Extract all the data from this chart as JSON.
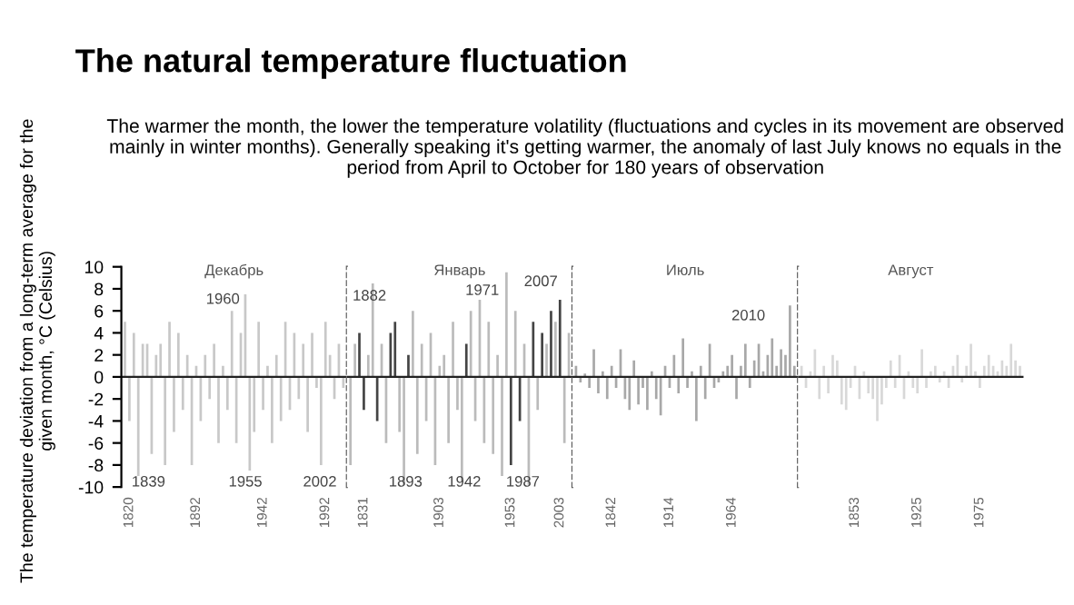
{
  "chart_data": [
    {
      "type": "other",
      "title": "The natural temperature fluctuation",
      "subtitle": "The warmer the month, the lower the temperature volatility (fluctuations and cycles in its movement are observed mainly in winter months). Generally speaking it's getting warmer, the anomaly of last July knows no equals in the period from April to October for 180 years of observation"
    },
    {
      "type": "bar",
      "title": "Декабрь",
      "ylabel": "The temperature deviation from a long-term average for the given month, °C (Celsius)",
      "color": "#c8c8c8",
      "ylim": [
        -10,
        10
      ],
      "yticks": [
        -10,
        -8,
        -6,
        -4,
        -2,
        0,
        2,
        4,
        6,
        8,
        10
      ],
      "categories": [
        null,
        "1820",
        null,
        null,
        null,
        null,
        null,
        null,
        null,
        null,
        null,
        null,
        null,
        null,
        null,
        null,
        "1892",
        null,
        null,
        null,
        null,
        null,
        null,
        null,
        null,
        null,
        null,
        null,
        null,
        null,
        null,
        "1942",
        null,
        null,
        null,
        null,
        null,
        null,
        null,
        null,
        null,
        null,
        null,
        null,
        null,
        "1992",
        null,
        null,
        null,
        null
      ],
      "values": [
        5,
        -4,
        4,
        -9,
        3,
        3,
        -7,
        2,
        3,
        -8,
        5,
        -5,
        4,
        -3,
        2,
        -8,
        1,
        -4,
        2,
        -2,
        3,
        -6,
        1,
        -3,
        6,
        -6,
        4,
        7.5,
        -8.5,
        -5,
        5,
        -3,
        1,
        -6,
        2,
        -4,
        5,
        -3,
        4,
        -2,
        3,
        -5,
        4,
        -1,
        -8,
        5,
        2,
        -2,
        3,
        -1
      ],
      "annotations": [
        "1960",
        "1839",
        "1955",
        "2002"
      ]
    },
    {
      "type": "bar",
      "title": "Январь",
      "tick_labels": "x",
      "ylim": [
        -10,
        10
      ],
      "categories": [
        null,
        null,
        null,
        "1831",
        null,
        null,
        null,
        null,
        null,
        null,
        null,
        null,
        null,
        null,
        null,
        null,
        null,
        null,
        null,
        null,
        "1903",
        null,
        null,
        null,
        null,
        null,
        null,
        null,
        null,
        null,
        null,
        null,
        null,
        null,
        null,
        null,
        "1953",
        null,
        null,
        null,
        null,
        null,
        null,
        null,
        null,
        null,
        null,
        "2003",
        null,
        null
      ],
      "values": [
        -8,
        3,
        4,
        -3,
        2,
        8.5,
        -4,
        3,
        -6,
        4,
        5,
        -5,
        -9.8,
        2,
        6,
        -7,
        3,
        -4,
        4,
        -8,
        1,
        2,
        -6,
        5,
        -3,
        -9.5,
        3,
        6,
        -4,
        7,
        -6,
        5,
        -7,
        2,
        -9,
        9.5,
        -8,
        6,
        -4,
        3,
        -9.8,
        5,
        -3,
        4,
        3,
        6,
        5,
        7,
        -6,
        4
      ],
      "colors": [
        "#bbbbbb",
        "#bbbbbb",
        "#444444",
        "#444444",
        "#bbbbbb",
        "#bbbbbb",
        "#444444",
        "#bbbbbb",
        "#bbbbbb",
        "#444444",
        "#444444",
        "#bbbbbb",
        "#bbbbbb",
        "#444444",
        "#bbbbbb",
        "#bbbbbb",
        "#bbbbbb",
        "#bbbbbb",
        "#bbbbbb",
        "#bbbbbb",
        "#bbbbbb",
        "#bbbbbb",
        "#bbbbbb",
        "#bbbbbb",
        "#bbbbbb",
        "#bbbbbb",
        "#444444",
        "#bbbbbb",
        "#bbbbbb",
        "#bbbbbb",
        "#bbbbbb",
        "#bbbbbb",
        "#bbbbbb",
        "#bbbbbb",
        "#bbbbbb",
        "#bbbbbb",
        "#444444",
        "#bbbbbb",
        "#444444",
        "#bbbbbb",
        "#bbbbbb",
        "#444444",
        "#bbbbbb",
        "#444444",
        "#bbbbbb",
        "#444444",
        "#bbbbbb",
        "#444444",
        "#bbbbbb",
        "#bbbbbb"
      ],
      "annotations": [
        "1882",
        "1971",
        "2007",
        "1893",
        "1942",
        "1987"
      ]
    },
    {
      "type": "bar",
      "title": "Июль",
      "tick_labels": "x",
      "color": "#a8a8a8",
      "ylim": [
        -10,
        10
      ],
      "categories": [
        null,
        null,
        null,
        null,
        null,
        null,
        null,
        null,
        "1842",
        null,
        null,
        null,
        null,
        null,
        null,
        null,
        null,
        null,
        null,
        null,
        null,
        "1914",
        null,
        null,
        null,
        null,
        null,
        null,
        null,
        null,
        null,
        null,
        null,
        null,
        null,
        "1964",
        null,
        null,
        null,
        null,
        null,
        null,
        null,
        null,
        null,
        null,
        null,
        null,
        null,
        null
      ],
      "values": [
        1,
        -0.5,
        0.3,
        -1,
        2.5,
        -1.5,
        0.5,
        -2,
        1,
        -1,
        2.5,
        -2,
        -3,
        1.5,
        -2.5,
        -1,
        -3,
        0.5,
        -2,
        -3.5,
        1,
        -1,
        2,
        -1.5,
        3.5,
        -1,
        0.5,
        -4,
        1,
        -2,
        3,
        -1,
        -0.5,
        0.5,
        1,
        2,
        -2,
        1,
        3,
        -1,
        1.5,
        3,
        0.5,
        2,
        3.5,
        1,
        2.5,
        2,
        6.5,
        1
      ],
      "annotations": [
        "2010"
      ]
    },
    {
      "type": "bar",
      "title": "Август",
      "tick_labels": "x",
      "color": "#d8d8d8",
      "ylim": [
        -10,
        10
      ],
      "categories": [
        null,
        null,
        null,
        null,
        null,
        null,
        null,
        null,
        null,
        null,
        null,
        null,
        "1853",
        null,
        null,
        null,
        null,
        null,
        null,
        null,
        null,
        null,
        null,
        null,
        null,
        null,
        "1925",
        null,
        null,
        null,
        null,
        null,
        null,
        null,
        null,
        null,
        null,
        null,
        null,
        null,
        "1975",
        null,
        null,
        null,
        null,
        null,
        null,
        null,
        null,
        null
      ],
      "values": [
        1,
        -1,
        0.5,
        2.5,
        -2,
        1,
        -1.5,
        2,
        1.5,
        -2.5,
        -3,
        -1,
        1,
        -2,
        0.5,
        -1.5,
        -2,
        -4,
        -2.5,
        -1,
        1.5,
        -1,
        2,
        -2,
        0.5,
        -1,
        -1.5,
        2.5,
        -1,
        0.5,
        1,
        -0.5,
        0.5,
        -1,
        1,
        2,
        -0.5,
        1,
        3,
        0.5,
        -1,
        1,
        2,
        1,
        0.5,
        1.5,
        1,
        3,
        1.5,
        1
      ]
    }
  ]
}
